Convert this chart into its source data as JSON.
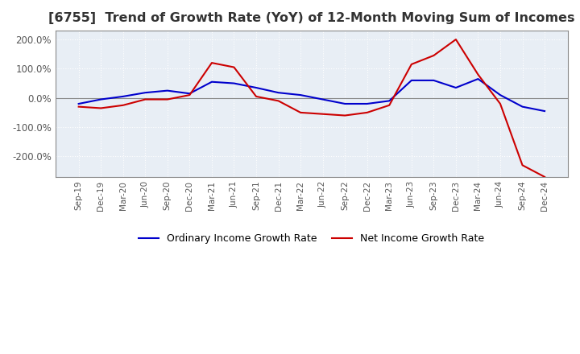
{
  "title": "[6755]  Trend of Growth Rate (YoY) of 12-Month Moving Sum of Incomes",
  "title_fontsize": 11.5,
  "ylim": [
    -270,
    230
  ],
  "yticks": [
    -200,
    -100,
    0,
    100,
    200
  ],
  "background_color": "#ffffff",
  "plot_bg_color": "#e8eef5",
  "grid_color": "#ffffff",
  "zero_line_color": "#888888",
  "ordinary_color": "#0000cc",
  "net_color": "#cc0000",
  "legend_ordinary": "Ordinary Income Growth Rate",
  "legend_net": "Net Income Growth Rate",
  "dates": [
    "Sep-19",
    "Dec-19",
    "Mar-20",
    "Jun-20",
    "Sep-20",
    "Dec-20",
    "Mar-21",
    "Jun-21",
    "Sep-21",
    "Dec-21",
    "Mar-22",
    "Jun-22",
    "Sep-22",
    "Dec-22",
    "Mar-23",
    "Jun-23",
    "Sep-23",
    "Dec-23",
    "Mar-24",
    "Jun-24",
    "Sep-24",
    "Dec-24"
  ],
  "ordinary_values": [
    -20,
    -5,
    5,
    18,
    25,
    15,
    55,
    50,
    35,
    18,
    10,
    -5,
    -20,
    -20,
    -10,
    60,
    60,
    35,
    65,
    10,
    -30,
    -45
  ],
  "net_values": [
    -30,
    -35,
    -25,
    -5,
    -5,
    10,
    120,
    105,
    5,
    -10,
    -50,
    -55,
    -60,
    -50,
    -25,
    115,
    145,
    200,
    80,
    -20,
    -230,
    -270
  ]
}
